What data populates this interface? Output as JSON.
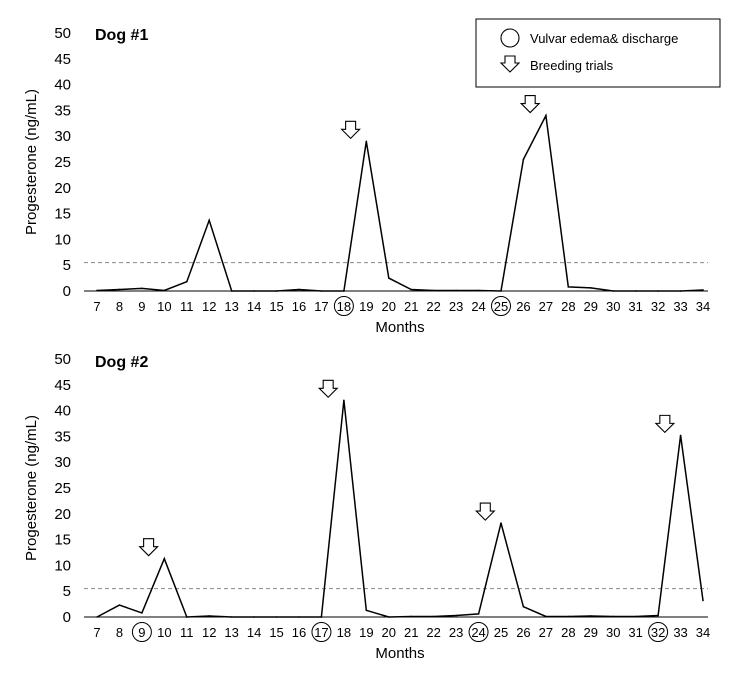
{
  "legend": {
    "circle_label": "Vulvar edema& discharge",
    "arrow_label": "Breeding trials",
    "circle_icon": "circle-marker-icon",
    "arrow_icon": "down-arrow-icon"
  },
  "colors": {
    "line": "#000000",
    "threshold": "#888888"
  },
  "chart_data": [
    {
      "type": "line",
      "title": "Dog #1",
      "xlabel": "Months",
      "ylabel": "Progesterone (ng/mL)",
      "ylim": [
        0,
        50
      ],
      "yticks": [
        0,
        5,
        10,
        15,
        20,
        25,
        30,
        35,
        40,
        45,
        50
      ],
      "x": [
        7,
        8,
        9,
        10,
        11,
        12,
        13,
        14,
        15,
        16,
        17,
        18,
        19,
        20,
        21,
        22,
        23,
        24,
        25,
        26,
        27,
        28,
        29,
        30,
        31,
        32,
        33,
        34
      ],
      "values": [
        0.1,
        0.3,
        0.5,
        0.1,
        1.8,
        13.7,
        0,
        0,
        0,
        0.3,
        0,
        0,
        29,
        2.5,
        0.3,
        0.1,
        0.1,
        0.1,
        0,
        25.5,
        34,
        0.8,
        0.6,
        0,
        0,
        0,
        0,
        0.2
      ],
      "threshold": 5.5,
      "circled_months": [
        18,
        25
      ],
      "breeding_months": [
        18.3,
        26.3
      ],
      "legend_position": "top-right"
    },
    {
      "type": "line",
      "title": "Dog #2",
      "xlabel": "Months",
      "ylabel": "Progesterone (ng/mL)",
      "ylim": [
        0,
        50
      ],
      "yticks": [
        0,
        5,
        10,
        15,
        20,
        25,
        30,
        35,
        40,
        45,
        50
      ],
      "x": [
        7,
        8,
        9,
        10,
        11,
        12,
        13,
        14,
        15,
        16,
        17,
        18,
        19,
        20,
        21,
        22,
        23,
        24,
        25,
        26,
        27,
        28,
        29,
        30,
        31,
        32,
        33,
        34
      ],
      "values": [
        0,
        2.3,
        0.8,
        11.3,
        0,
        0.2,
        0,
        0,
        0,
        0,
        0,
        42,
        1.3,
        0,
        0.1,
        0.1,
        0.3,
        0.6,
        18.2,
        2,
        0.1,
        0.1,
        0.2,
        0.1,
        0.1,
        0.3,
        35.2,
        3.2
      ],
      "threshold": 5.5,
      "circled_months": [
        9,
        17,
        24,
        32
      ],
      "breeding_months": [
        9.3,
        17.3,
        24.3,
        32.3
      ]
    }
  ]
}
